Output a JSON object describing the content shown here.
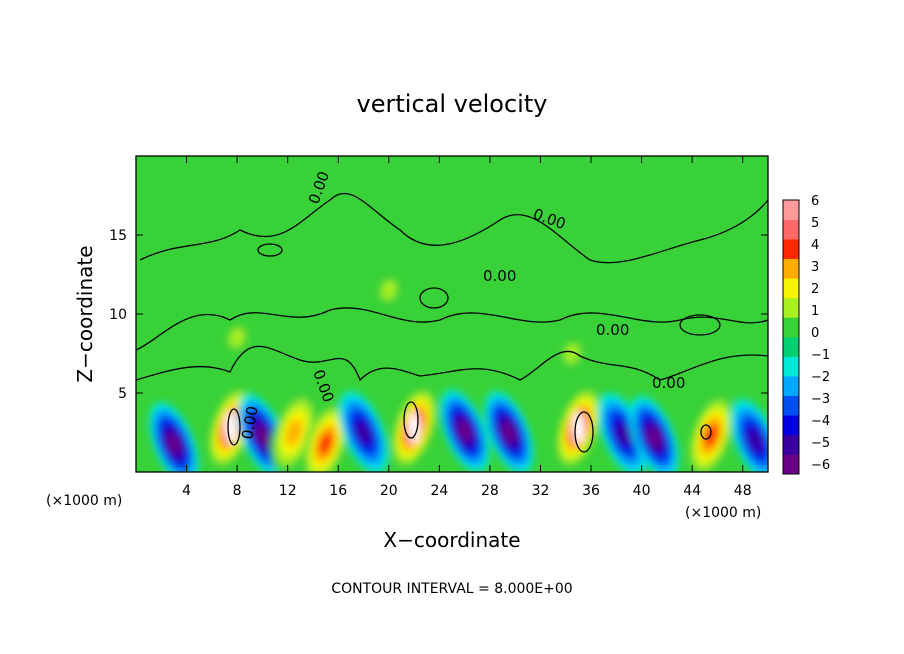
{
  "chart_data": {
    "type": "heatmap",
    "title": "vertical velocity",
    "xlabel": "X−coordinate",
    "ylabel": "Z−coordinate",
    "x_unit_left": "(×1000 m)",
    "x_unit_right": "(×1000 m)",
    "xlim": [
      0,
      50
    ],
    "ylim": [
      0,
      20
    ],
    "x_ticks": [
      4,
      8,
      12,
      16,
      20,
      24,
      28,
      32,
      36,
      40,
      44,
      48
    ],
    "y_ticks": [
      5,
      10,
      15
    ],
    "colorbar": {
      "ticks": [
        6,
        5,
        4,
        3,
        2,
        1,
        0,
        -1,
        -2,
        -3,
        -4,
        -5,
        -6
      ],
      "tick_labels": [
        "6",
        "5",
        "4",
        "3",
        "2",
        "1",
        "0",
        "−1",
        "−2",
        "−3",
        "−4",
        "−5",
        "−6"
      ],
      "colors": [
        "#6a0088",
        "#3a00a0",
        "#0000e0",
        "#0050f0",
        "#00a8ff",
        "#00e8d8",
        "#00d070",
        "#38d238",
        "#a8f020",
        "#f6f600",
        "#ffae00",
        "#ff2800",
        "#ff6868",
        "#ff9a9a"
      ]
    },
    "contour_interval_label": "CONTOUR INTERVAL = 8.000E+00",
    "contour_labels": [
      "0.00",
      "0.00",
      "0.00",
      "0.00",
      "0.00",
      "0.00",
      "0.00"
    ],
    "features": [
      {
        "x": 3.0,
        "z": 1.8,
        "amp": -6
      },
      {
        "x": 7.5,
        "z": 2.8,
        "amp": 6
      },
      {
        "x": 10.0,
        "z": 2.3,
        "amp": -6
      },
      {
        "x": 12.5,
        "z": 2.5,
        "amp": 4
      },
      {
        "x": 15.0,
        "z": 1.8,
        "amp": 5
      },
      {
        "x": 18.0,
        "z": 2.5,
        "amp": -5
      },
      {
        "x": 22.0,
        "z": 2.8,
        "amp": 6
      },
      {
        "x": 26.0,
        "z": 2.6,
        "amp": -6
      },
      {
        "x": 29.5,
        "z": 2.5,
        "amp": -6
      },
      {
        "x": 35.0,
        "z": 2.8,
        "amp": 6
      },
      {
        "x": 38.5,
        "z": 2.4,
        "amp": -5
      },
      {
        "x": 41.0,
        "z": 2.2,
        "amp": -6
      },
      {
        "x": 45.5,
        "z": 2.3,
        "amp": 5
      },
      {
        "x": 49.0,
        "z": 2.0,
        "amp": -5
      },
      {
        "x": 8.0,
        "z": 8.5,
        "amp": 2
      },
      {
        "x": 20.0,
        "z": 11.5,
        "amp": 2
      },
      {
        "x": 23.0,
        "z": 14.0,
        "amp": 1
      },
      {
        "x": 34.5,
        "z": 7.5,
        "amp": 2
      }
    ]
  }
}
